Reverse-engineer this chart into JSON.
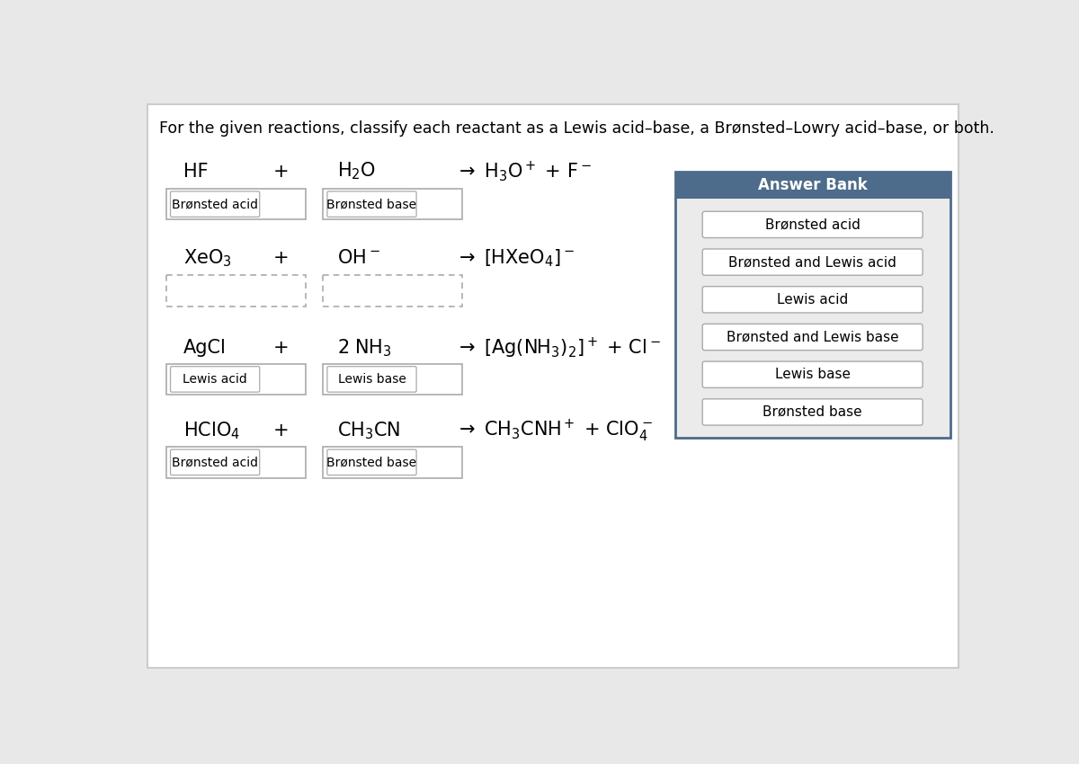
{
  "title": "For the given reactions, classify each reactant as a Lewis acid–base, a Brønsted–Lowry acid–base, or both.",
  "bg_color": "#e8e8e8",
  "main_bg": "#ffffff",
  "reactions": [
    {
      "reactant1": "HF",
      "plus": "+",
      "reactant2": "H$_2$O",
      "product": "$\\rightarrow$ H$_3$O$^+$ + F$^-$",
      "label1": "Brønsted acid",
      "label2": "Brønsted base",
      "label1_style": "solid",
      "label2_style": "solid"
    },
    {
      "reactant1": "XeO$_3$",
      "plus": "+",
      "reactant2": "OH$^-$",
      "product": "$\\rightarrow$ [HXeO$_4$]$^-$",
      "label1": "",
      "label2": "",
      "label1_style": "dotted",
      "label2_style": "dotted"
    },
    {
      "reactant1": "AgCl",
      "plus": "+",
      "reactant2": "2 NH$_3$",
      "product": "$\\rightarrow$ [Ag(NH$_3$)$_2$]$^+$ + Cl$^-$",
      "label1": "Lewis acid",
      "label2": "Lewis base",
      "label1_style": "solid",
      "label2_style": "solid"
    },
    {
      "reactant1": "HClO$_4$",
      "plus": "+",
      "reactant2": "CH$_3$CN",
      "product": "$\\rightarrow$ CH$_3$CNH$^+$ + ClO$_4^-$",
      "label1": "Brønsted acid",
      "label2": "Brønsted base",
      "label1_style": "solid",
      "label2_style": "solid"
    }
  ],
  "answer_bank_header": "Answer Bank",
  "answer_bank_header_bg": "#4d6b8a",
  "answer_bank_bg": "#ebebeb",
  "answer_bank_border": "#4d6b8a",
  "answer_bank_items": [
    "Brønsted acid",
    "Brønsted and Lewis acid",
    "Lewis acid",
    "Brønsted and Lewis base",
    "Lewis base",
    "Brønsted base"
  ]
}
